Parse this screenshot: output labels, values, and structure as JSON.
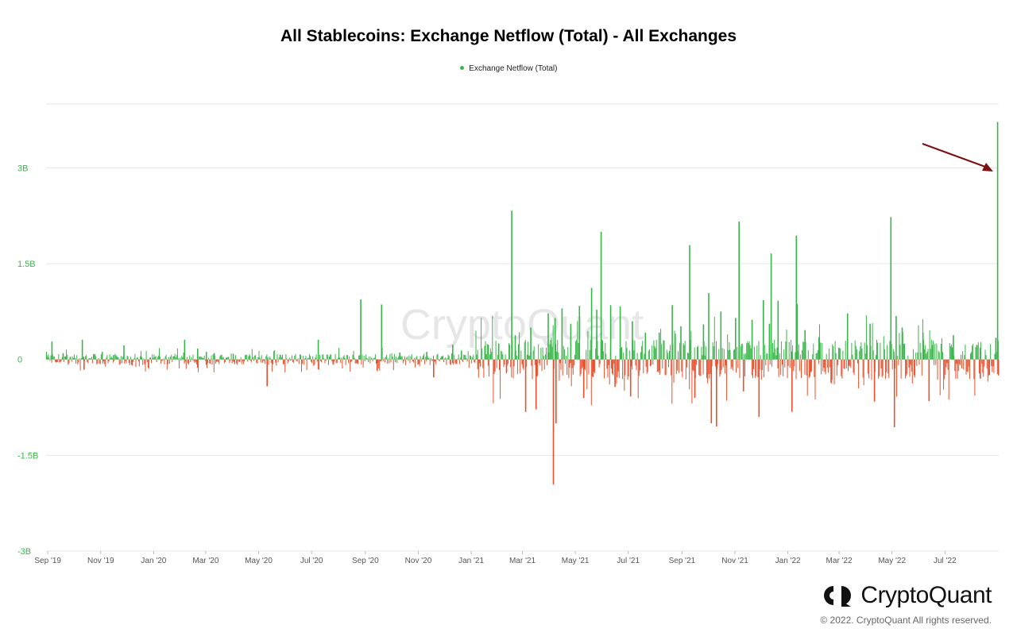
{
  "chart_data": {
    "type": "bar",
    "title": "All Stablecoins: Exchange Netflow (Total) - All Exchanges",
    "legend": [
      {
        "name": "Exchange Netflow (Total)",
        "color": "#3ab54a"
      }
    ],
    "legend_position": "top-center",
    "ylim": [
      -3000000000,
      4000000000
    ],
    "y_ticks": [
      "3B",
      "1.5B",
      "0",
      "-1.5B",
      "-3B"
    ],
    "y_tick_values": [
      3000000000,
      1500000000,
      0,
      -1500000000,
      -3000000000
    ],
    "x_range": [
      "2019-08-30",
      "2022-09-01"
    ],
    "x_ticks": [
      {
        "label": "Sep '19",
        "date": "2019-09-01"
      },
      {
        "label": "Nov '19",
        "date": "2019-11-01"
      },
      {
        "label": "Jan '20",
        "date": "2020-01-01"
      },
      {
        "label": "Mar '20",
        "date": "2020-03-01"
      },
      {
        "label": "May '20",
        "date": "2020-05-01"
      },
      {
        "label": "Jul '20",
        "date": "2020-07-01"
      },
      {
        "label": "Sep '20",
        "date": "2020-09-01"
      },
      {
        "label": "Nov '20",
        "date": "2020-11-01"
      },
      {
        "label": "Jan '21",
        "date": "2021-01-01"
      },
      {
        "label": "Mar '21",
        "date": "2021-03-01"
      },
      {
        "label": "May '21",
        "date": "2021-05-01"
      },
      {
        "label": "Jul '21",
        "date": "2021-07-01"
      },
      {
        "label": "Sep '21",
        "date": "2021-09-01"
      },
      {
        "label": "Nov '21",
        "date": "2021-11-01"
      },
      {
        "label": "Jan '22",
        "date": "2022-01-01"
      },
      {
        "label": "Mar '22",
        "date": "2022-03-01"
      },
      {
        "label": "May '22",
        "date": "2022-05-01"
      },
      {
        "label": "Jul '22",
        "date": "2022-07-01"
      }
    ],
    "positive_color": "#3ab54a",
    "negative_color": "#e8502e",
    "grid": true,
    "series": [
      {
        "name": "Exchange Netflow (Total)",
        "data": [
          [
            "2019-09-05",
            280000000
          ],
          [
            "2019-09-18",
            100000000
          ],
          [
            "2019-10-10",
            310000000
          ],
          [
            "2019-10-12",
            -160000000
          ],
          [
            "2019-11-02",
            120000000
          ],
          [
            "2019-11-15",
            70000000
          ],
          [
            "2019-11-27",
            220000000
          ],
          [
            "2020-02-05",
            310000000
          ],
          [
            "2020-02-20",
            170000000
          ],
          [
            "2020-03-01",
            120000000
          ],
          [
            "2020-03-10",
            100000000
          ],
          [
            "2020-04-01",
            90000000
          ],
          [
            "2020-05-10",
            -420000000
          ],
          [
            "2020-04-20",
            60000000
          ],
          [
            "2020-07-08",
            310000000
          ],
          [
            "2020-08-26",
            940000000
          ],
          [
            "2020-09-14",
            -180000000
          ],
          [
            "2020-09-19",
            860000000
          ],
          [
            "2020-10-10",
            110000000
          ],
          [
            "2020-11-10",
            120000000
          ],
          [
            "2020-11-18",
            -280000000
          ],
          [
            "2020-12-10",
            230000000
          ],
          [
            "2020-12-20",
            140000000
          ],
          [
            "2021-01-08",
            -150000000
          ],
          [
            "2021-01-20",
            230000000
          ],
          [
            "2021-02-01",
            250000000
          ],
          [
            "2021-02-10",
            -200000000
          ],
          [
            "2021-02-16",
            2330000000
          ],
          [
            "2021-02-20",
            380000000
          ],
          [
            "2021-03-04",
            -820000000
          ],
          [
            "2021-03-10",
            500000000
          ],
          [
            "2021-03-16",
            -780000000
          ],
          [
            "2021-03-30",
            720000000
          ],
          [
            "2021-04-05",
            -1960000000
          ],
          [
            "2021-04-07",
            650000000
          ],
          [
            "2021-04-08",
            -1000000000
          ],
          [
            "2021-04-15",
            800000000
          ],
          [
            "2021-04-25",
            560000000
          ],
          [
            "2021-05-05",
            840000000
          ],
          [
            "2021-05-10",
            -600000000
          ],
          [
            "2021-05-19",
            1120000000
          ],
          [
            "2021-05-25",
            780000000
          ],
          [
            "2021-05-30",
            2000000000
          ],
          [
            "2021-06-10",
            850000000
          ],
          [
            "2021-06-15",
            -430000000
          ],
          [
            "2021-06-21",
            830000000
          ],
          [
            "2021-07-03",
            -580000000
          ],
          [
            "2021-07-05",
            600000000
          ],
          [
            "2021-07-20",
            420000000
          ],
          [
            "2021-08-05",
            420000000
          ],
          [
            "2021-08-20",
            850000000
          ],
          [
            "2021-08-30",
            520000000
          ],
          [
            "2021-09-09",
            1790000000
          ],
          [
            "2021-09-15",
            -600000000
          ],
          [
            "2021-09-25",
            550000000
          ],
          [
            "2021-10-01",
            1040000000
          ],
          [
            "2021-10-04",
            -1000000000
          ],
          [
            "2021-10-10",
            -1050000000
          ],
          [
            "2021-10-15",
            750000000
          ],
          [
            "2021-11-01",
            650000000
          ],
          [
            "2021-11-05",
            2160000000
          ],
          [
            "2021-11-10",
            -500000000
          ],
          [
            "2021-11-20",
            620000000
          ],
          [
            "2021-11-28",
            -900000000
          ],
          [
            "2021-12-03",
            930000000
          ],
          [
            "2021-12-10",
            560000000
          ],
          [
            "2021-12-12",
            1660000000
          ],
          [
            "2021-12-20",
            920000000
          ],
          [
            "2022-01-05",
            -820000000
          ],
          [
            "2022-01-10",
            1940000000
          ],
          [
            "2022-01-11",
            870000000
          ],
          [
            "2022-01-20",
            460000000
          ],
          [
            "2022-02-05",
            350000000
          ],
          [
            "2022-02-20",
            -320000000
          ],
          [
            "2022-03-10",
            720000000
          ],
          [
            "2022-04-05",
            560000000
          ],
          [
            "2022-04-10",
            -660000000
          ],
          [
            "2022-04-29",
            2230000000
          ],
          [
            "2022-05-03",
            -1060000000
          ],
          [
            "2022-05-05",
            680000000
          ],
          [
            "2022-05-12",
            500000000
          ],
          [
            "2022-06-05",
            420000000
          ],
          [
            "2022-06-12",
            -650000000
          ],
          [
            "2022-07-10",
            380000000
          ],
          [
            "2022-08-10",
            -300000000
          ],
          [
            "2022-08-28",
            340000000
          ],
          [
            "2022-08-30",
            3720000000
          ],
          [
            "2022-08-31",
            -250000000
          ]
        ]
      }
    ]
  },
  "watermark": "CryptoQuant",
  "brand": {
    "name": "CryptoQuant",
    "copyright": "© 2022. CryptoQuant All rights reserved."
  },
  "annotation": {
    "type": "arrow",
    "color": "#7a1010"
  }
}
